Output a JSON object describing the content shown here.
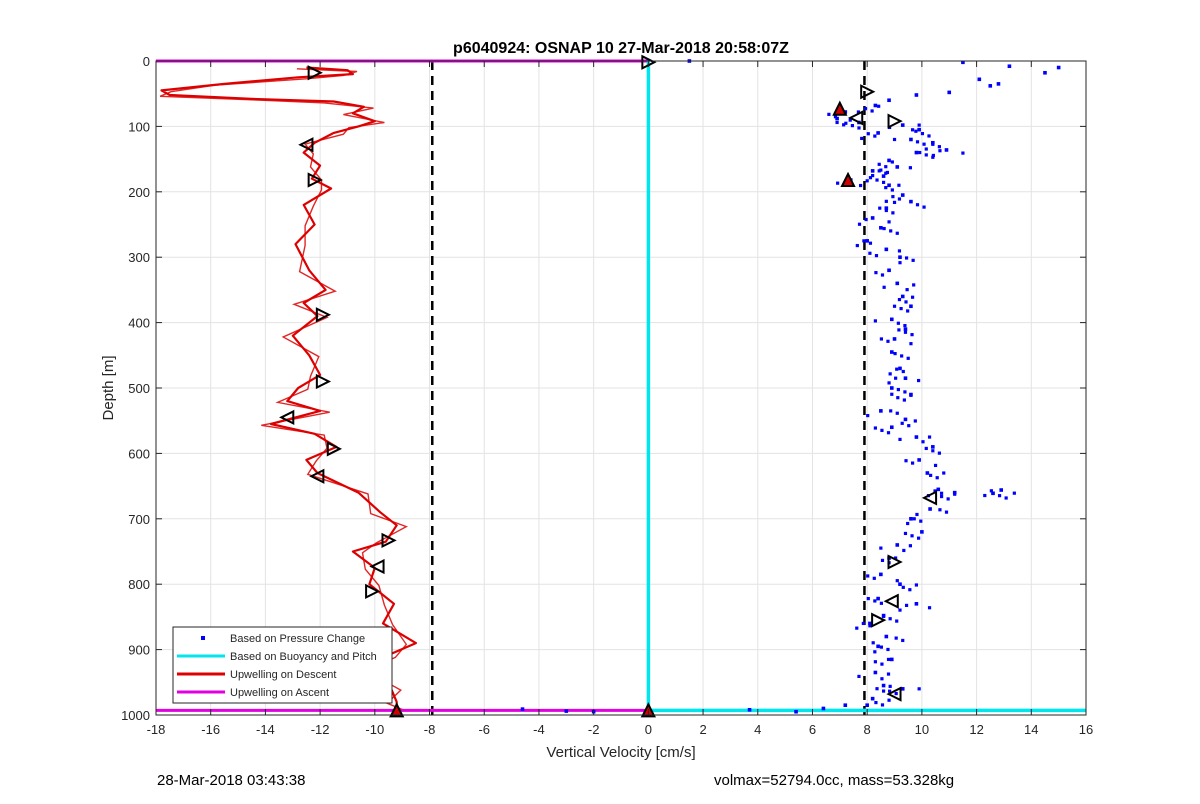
{
  "footer": {
    "timestamp": "28-Mar-2018 03:43:38",
    "volmax_mass": "volmax=52794.0cc, mass=53.328kg"
  },
  "chart_data": {
    "type": "line",
    "title": "p6040924: OSNAP 10 27-Mar-2018 20:58:07Z",
    "xlabel": "Vertical Velocity [cm/s]",
    "ylabel": "Depth [m]",
    "xlim": [
      -18,
      16
    ],
    "ylim": [
      0,
      1000
    ],
    "y_reversed": true,
    "grid": true,
    "xticks": [
      -18,
      -16,
      -14,
      -12,
      -10,
      -8,
      -6,
      -4,
      -2,
      0,
      2,
      4,
      6,
      8,
      10,
      12,
      14,
      16
    ],
    "yticks": [
      0,
      100,
      200,
      300,
      400,
      500,
      600,
      700,
      800,
      900,
      1000
    ],
    "legend_position": "bottom-left",
    "legend": [
      {
        "label": "Based on Pressure Change",
        "style": "point",
        "color": "#0000ff"
      },
      {
        "label": "Based on Buoyancy and Pitch",
        "style": "line",
        "color": "#00e5ee"
      },
      {
        "label": "Upwelling on Descent",
        "style": "line",
        "color": "#dd0000"
      },
      {
        "label": "Upwelling on Ascent",
        "style": "line",
        "color": "#e000e0"
      }
    ],
    "reference_lines": [
      {
        "x": -7.9,
        "style": "dashed",
        "color": "#000000"
      },
      {
        "x": 7.9,
        "style": "dashed",
        "color": "#000000"
      }
    ],
    "series": [
      {
        "name": "Upwelling on Descent",
        "color": "#dd0000",
        "points": [
          [
            -12.5,
            10
          ],
          [
            -11.0,
            14
          ],
          [
            -10.8,
            20
          ],
          [
            -12.8,
            25
          ],
          [
            -15.5,
            35
          ],
          [
            -17.8,
            45
          ],
          [
            -17.5,
            52
          ],
          [
            -14.5,
            58
          ],
          [
            -11.5,
            62
          ],
          [
            -10.4,
            70
          ],
          [
            -10.8,
            80
          ],
          [
            -10.0,
            92
          ],
          [
            -10.6,
            100
          ],
          [
            -11.5,
            110
          ],
          [
            -12.2,
            125
          ],
          [
            -12.6,
            140
          ],
          [
            -12.0,
            160
          ],
          [
            -12.3,
            180
          ],
          [
            -11.6,
            195
          ],
          [
            -12.6,
            220
          ],
          [
            -12.2,
            250
          ],
          [
            -12.9,
            280
          ],
          [
            -12.4,
            320
          ],
          [
            -11.8,
            350
          ],
          [
            -12.6,
            370
          ],
          [
            -12.1,
            390
          ],
          [
            -13.0,
            420
          ],
          [
            -12.4,
            450
          ],
          [
            -12.0,
            480
          ],
          [
            -12.8,
            500
          ],
          [
            -13.2,
            520
          ],
          [
            -12.0,
            535
          ],
          [
            -13.8,
            555
          ],
          [
            -12.2,
            570
          ],
          [
            -11.4,
            590
          ],
          [
            -12.5,
            610
          ],
          [
            -12.1,
            630
          ],
          [
            -10.6,
            660
          ],
          [
            -9.8,
            690
          ],
          [
            -9.2,
            710
          ],
          [
            -9.6,
            735
          ],
          [
            -10.8,
            750
          ],
          [
            -10.0,
            775
          ],
          [
            -10.2,
            800
          ],
          [
            -9.3,
            830
          ],
          [
            -9.7,
            860
          ],
          [
            -8.5,
            890
          ],
          [
            -9.6,
            910
          ],
          [
            -10.0,
            930
          ],
          [
            -9.4,
            960
          ],
          [
            -9.2,
            980
          ],
          [
            -9.2,
            992
          ]
        ]
      },
      {
        "name": "Upwelling on Ascent",
        "color": "#e000e0",
        "points": [
          [
            -18,
            0
          ],
          [
            0,
            0
          ]
        ],
        "bottom_points": [
          [
            -18,
            993
          ],
          [
            0,
            993
          ]
        ]
      },
      {
        "name": "Based on Buoyancy and Pitch",
        "color": "#00e5ee",
        "points": [
          [
            0,
            0
          ],
          [
            0,
            993
          ],
          [
            16,
            993
          ]
        ]
      },
      {
        "name": "Based on Pressure Change",
        "color": "#0000ff",
        "points": [
          [
            1.5,
            0
          ],
          [
            11.5,
            2
          ],
          [
            13.2,
            8
          ],
          [
            12.1,
            28
          ],
          [
            12.8,
            35
          ],
          [
            14.5,
            18
          ],
          [
            15.0,
            10
          ],
          [
            12.5,
            38
          ],
          [
            11.0,
            48
          ],
          [
            9.8,
            52
          ],
          [
            8.8,
            60
          ],
          [
            8.3,
            68
          ],
          [
            7.2,
            78
          ],
          [
            6.9,
            88
          ],
          [
            7.7,
            94
          ],
          [
            9.3,
            98
          ],
          [
            9.9,
            105
          ],
          [
            8.4,
            110
          ],
          [
            9.6,
            120
          ],
          [
            10.4,
            125
          ],
          [
            10.9,
            136
          ],
          [
            9.8,
            140
          ],
          [
            8.8,
            152
          ],
          [
            9.1,
            162
          ],
          [
            8.2,
            168
          ],
          [
            8.6,
            176
          ],
          [
            7.4,
            182
          ],
          [
            8.8,
            190
          ],
          [
            9.3,
            205
          ],
          [
            9.6,
            215
          ],
          [
            8.7,
            225
          ],
          [
            8.2,
            240
          ],
          [
            8.5,
            255
          ],
          [
            8.0,
            275
          ],
          [
            8.7,
            288
          ],
          [
            9.2,
            300
          ],
          [
            8.8,
            320
          ],
          [
            9.1,
            340
          ],
          [
            9.3,
            360
          ],
          [
            9.6,
            375
          ],
          [
            8.9,
            395
          ],
          [
            9.4,
            410
          ],
          [
            9.0,
            425
          ],
          [
            8.9,
            445
          ],
          [
            9.2,
            470
          ],
          [
            9.4,
            485
          ],
          [
            8.9,
            500
          ],
          [
            9.6,
            510
          ],
          [
            8.5,
            535
          ],
          [
            9.4,
            548
          ],
          [
            8.9,
            560
          ],
          [
            9.8,
            575
          ],
          [
            10.4,
            590
          ],
          [
            9.9,
            610
          ],
          [
            10.2,
            630
          ],
          [
            10.6,
            655
          ],
          [
            12.9,
            656
          ],
          [
            12.6,
            661
          ],
          [
            11.2,
            660
          ],
          [
            10.3,
            685
          ],
          [
            9.6,
            700
          ],
          [
            10.0,
            720
          ],
          [
            9.1,
            740
          ],
          [
            8.8,
            760
          ],
          [
            8.5,
            785
          ],
          [
            9.2,
            800
          ],
          [
            8.4,
            822
          ],
          [
            9.8,
            830
          ],
          [
            8.6,
            848
          ],
          [
            8.1,
            860
          ],
          [
            8.7,
            880
          ],
          [
            8.4,
            895
          ],
          [
            8.9,
            915
          ],
          [
            8.3,
            935
          ],
          [
            8.6,
            955
          ],
          [
            9.3,
            960
          ],
          [
            8.2,
            975
          ],
          [
            8.0,
            985
          ],
          [
            -4.6,
            991
          ],
          [
            -3.0,
            994
          ],
          [
            -2.0,
            995
          ],
          [
            3.7,
            992
          ],
          [
            5.4,
            995
          ],
          [
            6.4,
            990
          ],
          [
            7.2,
            985
          ]
        ]
      }
    ]
  }
}
